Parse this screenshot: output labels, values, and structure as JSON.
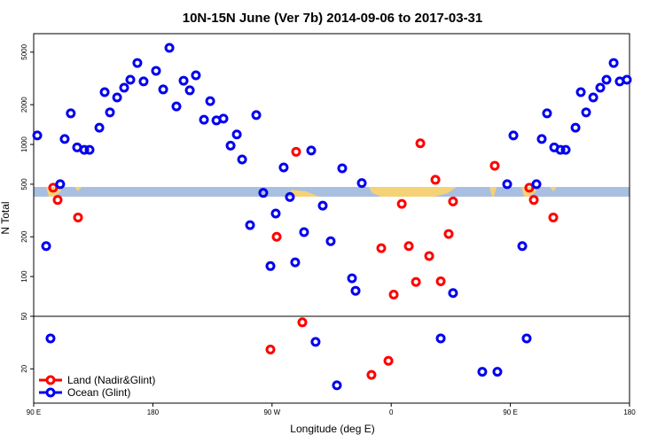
{
  "chart_data": {
    "type": "scatter",
    "title": "10N-15N June (Ver 7b)   2014-09-06 to 2017-03-31",
    "x_label": "Longitude (deg E)",
    "y_label": "N Total",
    "log_y": true,
    "xlim": [
      90,
      540
    ],
    "ylim": [
      11,
      6900
    ],
    "xticks": [
      {
        "value": 90,
        "label": "90 E"
      },
      {
        "value": 180,
        "label": "180"
      },
      {
        "value": 270,
        "label": "90 W"
      },
      {
        "value": 360,
        "label": "0"
      },
      {
        "value": 450,
        "label": "90 E"
      },
      {
        "value": 540,
        "label": "180"
      }
    ],
    "yticks": [
      20,
      50,
      100,
      200,
      500,
      1000,
      2000,
      5000
    ],
    "hlines": [
      50
    ],
    "legend": "bottom-left",
    "series": [
      {
        "name": "Land (Nadir&Glint)",
        "color": "#ff0000",
        "x": [
          104.7,
          108.1,
          123.5,
          268.8,
          273.5,
          288.2,
          292.9,
          345.1,
          352.5,
          357.9,
          361.9,
          368,
          373.3,
          378.7,
          382,
          388.7,
          393.4,
          397.4,
          403.4,
          406.7,
          438.2,
          464.3,
          467.7,
          482.4
        ],
        "values": [
          470,
          380,
          280,
          28,
          200,
          880,
          45,
          18,
          164,
          23,
          73,
          355,
          170,
          91,
          1020,
          143,
          540,
          92,
          210,
          370,
          690,
          470,
          380,
          280
        ]
      },
      {
        "name": "Ocean (Glint)",
        "color": "#0000ee",
        "x": [
          92.7,
          99.4,
          102.7,
          110,
          113.4,
          118,
          122.8,
          128.2,
          132.2,
          139.6,
          143.6,
          147.6,
          153,
          158.3,
          163,
          168.3,
          173,
          182.4,
          187.8,
          192.5,
          197.8,
          203.2,
          207.9,
          212.5,
          218.6,
          223.3,
          228,
          233.3,
          238.7,
          243.4,
          247.4,
          253.4,
          258.1,
          263.4,
          268.8,
          272.8,
          278.8,
          283.5,
          287.5,
          294.2,
          299.6,
          302.9,
          308.3,
          314.3,
          319,
          323,
          330.4,
          333.1,
          337.8,
          397.4,
          406.7,
          428.8,
          440.2,
          447.6,
          452.3,
          459,
          462.3,
          469.7,
          473.7,
          477.7,
          483.1,
          487.8,
          491.8,
          499.2,
          503.2,
          507.2,
          512.6,
          517.9,
          522.6,
          528,
          532.6,
          538
        ],
        "values": [
          1170,
          170,
          34,
          500,
          1100,
          1720,
          950,
          910,
          910,
          1340,
          2490,
          1750,
          2270,
          2690,
          3090,
          4140,
          3000,
          3610,
          2610,
          5390,
          1940,
          3040,
          2570,
          3340,
          1540,
          2130,
          1520,
          1570,
          980,
          1190,
          770,
          245,
          1670,
          430,
          120,
          300,
          670,
          400,
          128,
          217,
          900,
          32,
          344,
          185,
          15,
          660,
          97,
          78,
          510,
          34,
          75,
          19,
          19,
          500,
          1170,
          170,
          34,
          500,
          1100,
          1720,
          950,
          910,
          910,
          1340,
          2490,
          1750,
          2270,
          2690,
          3090,
          4140,
          3000,
          3090
        ]
      }
    ]
  }
}
